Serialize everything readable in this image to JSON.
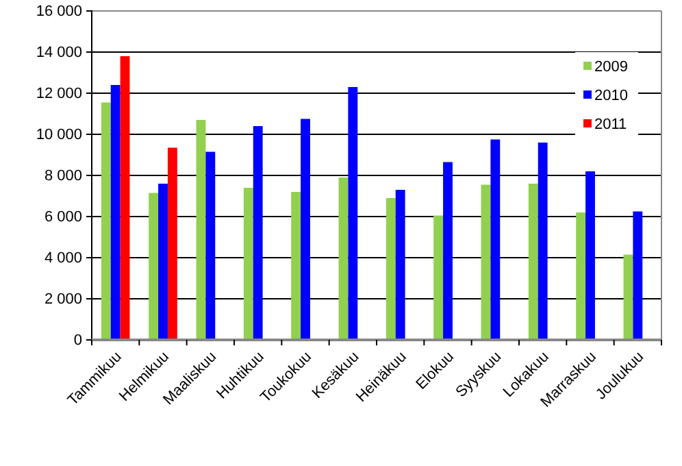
{
  "chart_data": {
    "type": "bar",
    "categories": [
      "Tammikuu",
      "Helmikuu",
      "Maaliskuu",
      "Huhtikuu",
      "Toukokuu",
      "Kesäkuu",
      "Heinäkuu",
      "Elokuu",
      "Syyskuu",
      "Lokakuu",
      "Marraskuu",
      "Joulukuu"
    ],
    "series": [
      {
        "name": "2009",
        "color": "#92d050",
        "values": [
          11550,
          7150,
          10700,
          7400,
          7200,
          7900,
          6900,
          6050,
          7550,
          7600,
          6200,
          4150
        ]
      },
      {
        "name": "2010",
        "color": "#0000ff",
        "values": [
          12400,
          7600,
          9150,
          10400,
          10750,
          12300,
          7300,
          8650,
          9750,
          9600,
          8200,
          6250
        ]
      },
      {
        "name": "2011",
        "color": "#ff0000",
        "values": [
          13800,
          9350,
          null,
          null,
          null,
          null,
          null,
          null,
          null,
          null,
          null,
          null
        ]
      }
    ],
    "ylim": [
      0,
      16000
    ],
    "yticks": [
      {
        "value": 0,
        "label": "0"
      },
      {
        "value": 2000,
        "label": "2 000"
      },
      {
        "value": 4000,
        "label": "4 000"
      },
      {
        "value": 6000,
        "label": "6 000"
      },
      {
        "value": 8000,
        "label": "8 000"
      },
      {
        "value": 10000,
        "label": "10 000"
      },
      {
        "value": 12000,
        "label": "12 000"
      },
      {
        "value": 14000,
        "label": "14 000"
      },
      {
        "value": 16000,
        "label": "16 000"
      }
    ],
    "grid": "y",
    "legend": "top right"
  }
}
